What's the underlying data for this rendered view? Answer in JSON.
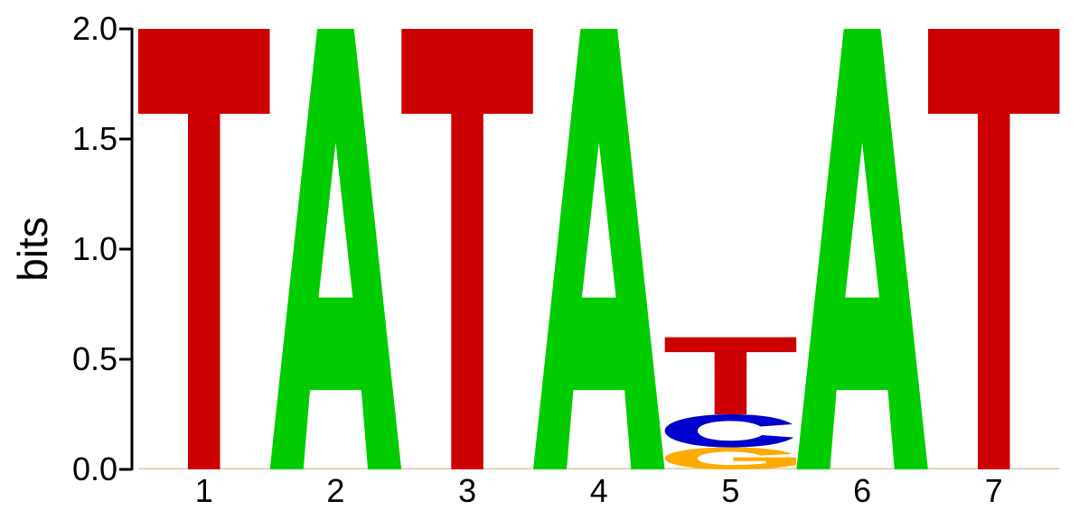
{
  "chart_data": {
    "type": "sequence-logo",
    "ylabel": "bits",
    "ylim": [
      0,
      2.0
    ],
    "yticks": [
      "0.0",
      "0.5",
      "1.0",
      "1.5",
      "2.0"
    ],
    "positions": [
      "1",
      "2",
      "3",
      "4",
      "5",
      "6",
      "7"
    ],
    "stacks": [
      [
        {
          "letter": "T",
          "bits": 2.0
        }
      ],
      [
        {
          "letter": "A",
          "bits": 2.0
        }
      ],
      [
        {
          "letter": "T",
          "bits": 2.0
        }
      ],
      [
        {
          "letter": "A",
          "bits": 2.0
        }
      ],
      [
        {
          "letter": "G",
          "bits": 0.1
        },
        {
          "letter": "C",
          "bits": 0.15
        },
        {
          "letter": "T",
          "bits": 0.35
        }
      ],
      [
        {
          "letter": "A",
          "bits": 2.0
        }
      ],
      [
        {
          "letter": "T",
          "bits": 2.0
        }
      ]
    ],
    "colors": {
      "A": "#00cc00",
      "T": "#cc0000",
      "C": "#0000cc",
      "G": "#ffaa00"
    }
  }
}
